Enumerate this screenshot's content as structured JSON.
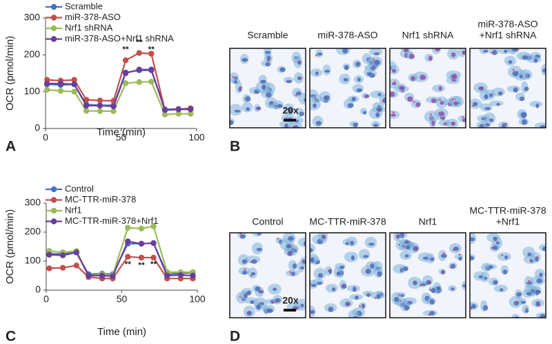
{
  "chart_data": [
    {
      "type": "line",
      "panel": "A",
      "y_label": "OCR (pmol/min)",
      "x_label": "Time (min)",
      "x": [
        1,
        10,
        19,
        27,
        36,
        45,
        53,
        62,
        70,
        79,
        88,
        96
      ],
      "xlim": [
        0,
        100
      ],
      "xticks": [
        0,
        50,
        100
      ],
      "ylim": [
        0,
        300
      ],
      "yticks": [
        0,
        100,
        200,
        300
      ],
      "series": [
        {
          "name": "Scramble",
          "color": "#4472c4",
          "values": [
            120,
            118,
            120,
            65,
            63,
            63,
            152,
            158,
            158,
            52,
            53,
            54
          ]
        },
        {
          "name": "miR-378-ASO",
          "color": "#c0504d",
          "values": [
            132,
            130,
            132,
            78,
            76,
            75,
            185,
            205,
            203,
            50,
            52,
            55
          ]
        },
        {
          "name": "Nrf1 shRNA",
          "color": "#9bbb59",
          "values": [
            105,
            102,
            100,
            48,
            47,
            47,
            123,
            126,
            127,
            38,
            40,
            40
          ]
        },
        {
          "name": "miR-378-ASO+Nrf1 shRNA",
          "color": "#6a3d9a",
          "values": [
            122,
            122,
            120,
            62,
            62,
            60,
            150,
            160,
            160,
            50,
            52,
            52
          ]
        }
      ],
      "annotations": [
        {
          "text": "**",
          "x": 53,
          "y": 213
        },
        {
          "text": "**",
          "x": 62,
          "y": 233
        },
        {
          "text": "**",
          "x": 70,
          "y": 213
        }
      ]
    },
    {
      "type": "line",
      "panel": "C",
      "y_label": "OCR (pmol/min)",
      "x_label": "Time (min)",
      "x": [
        2,
        11,
        20,
        28,
        37,
        44,
        54,
        63,
        71,
        80,
        89,
        97
      ],
      "xlim": [
        0,
        100
      ],
      "xticks": [
        0,
        50,
        100
      ],
      "ylim": [
        0,
        300
      ],
      "yticks": [
        0,
        100,
        200,
        300
      ],
      "series": [
        {
          "name": "Control",
          "color": "#4472c4",
          "values": [
            125,
            125,
            130,
            55,
            57,
            55,
            160,
            160,
            162,
            55,
            58,
            60
          ]
        },
        {
          "name": "MC-TTR-miR-378",
          "color": "#c0504d",
          "values": [
            75,
            77,
            85,
            45,
            40,
            40,
            115,
            112,
            112,
            40,
            40,
            40
          ]
        },
        {
          "name": "Nrf1",
          "color": "#9bbb59",
          "values": [
            135,
            130,
            135,
            50,
            55,
            52,
            215,
            212,
            220,
            62,
            62,
            62
          ]
        },
        {
          "name": "MC-TTR-miR-378+Nrf1",
          "color": "#6a3d9a",
          "values": [
            122,
            120,
            130,
            50,
            50,
            48,
            168,
            160,
            162,
            50,
            52,
            50
          ]
        }
      ],
      "annotations": [
        {
          "text": "**",
          "x": 54,
          "y": 87
        },
        {
          "text": "**",
          "x": 63,
          "y": 84
        },
        {
          "text": "**",
          "x": 71,
          "y": 87
        }
      ]
    }
  ],
  "image_panels": [
    {
      "panel": "B",
      "scale_label": "20x",
      "images": [
        {
          "label": [
            "Scramble"
          ]
        },
        {
          "label": [
            "miR-378-ASO"
          ]
        },
        {
          "label": [
            "Nrf1 shRNA"
          ]
        },
        {
          "label": [
            "miR-378-ASO",
            "+Nrf1 shRNA"
          ]
        }
      ]
    },
    {
      "panel": "D",
      "scale_label": "20x",
      "images": [
        {
          "label": [
            "Control"
          ]
        },
        {
          "label": [
            "MC-TTR-miR-378"
          ]
        },
        {
          "label": [
            "Nrf1"
          ]
        },
        {
          "label": [
            "MC-TTR-miR-378",
            "+Nrf1"
          ]
        }
      ]
    }
  ]
}
